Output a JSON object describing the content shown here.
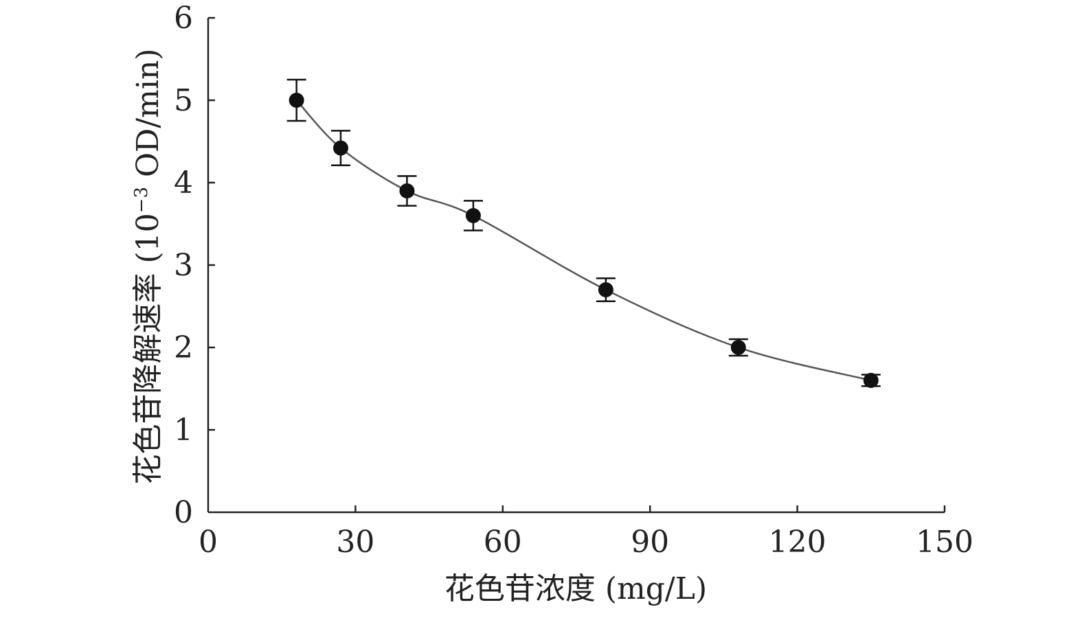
{
  "chart_data": {
    "type": "line",
    "xlabel": "花色苷浓度 (mg/L)",
    "ylabel_main": "花色苷降解速率 (10",
    "ylabel_sup": "−3",
    "ylabel_tail": " OD/min)",
    "xlim": [
      0,
      150
    ],
    "ylim": [
      0,
      6
    ],
    "xticks": [
      0,
      30,
      60,
      90,
      120,
      150
    ],
    "yticks": [
      0,
      1,
      2,
      3,
      4,
      5,
      6
    ],
    "grid": false,
    "series": [
      {
        "x": [
          18,
          27,
          40.5,
          54,
          81,
          108,
          135
        ],
        "y": [
          5.0,
          4.42,
          3.9,
          3.6,
          2.7,
          2.0,
          1.6
        ],
        "error": [
          0.25,
          0.21,
          0.18,
          0.18,
          0.14,
          0.1,
          0.07
        ]
      }
    ],
    "colors": {
      "line": "#555555",
      "marker": "#111111",
      "axis": "#222222"
    }
  }
}
